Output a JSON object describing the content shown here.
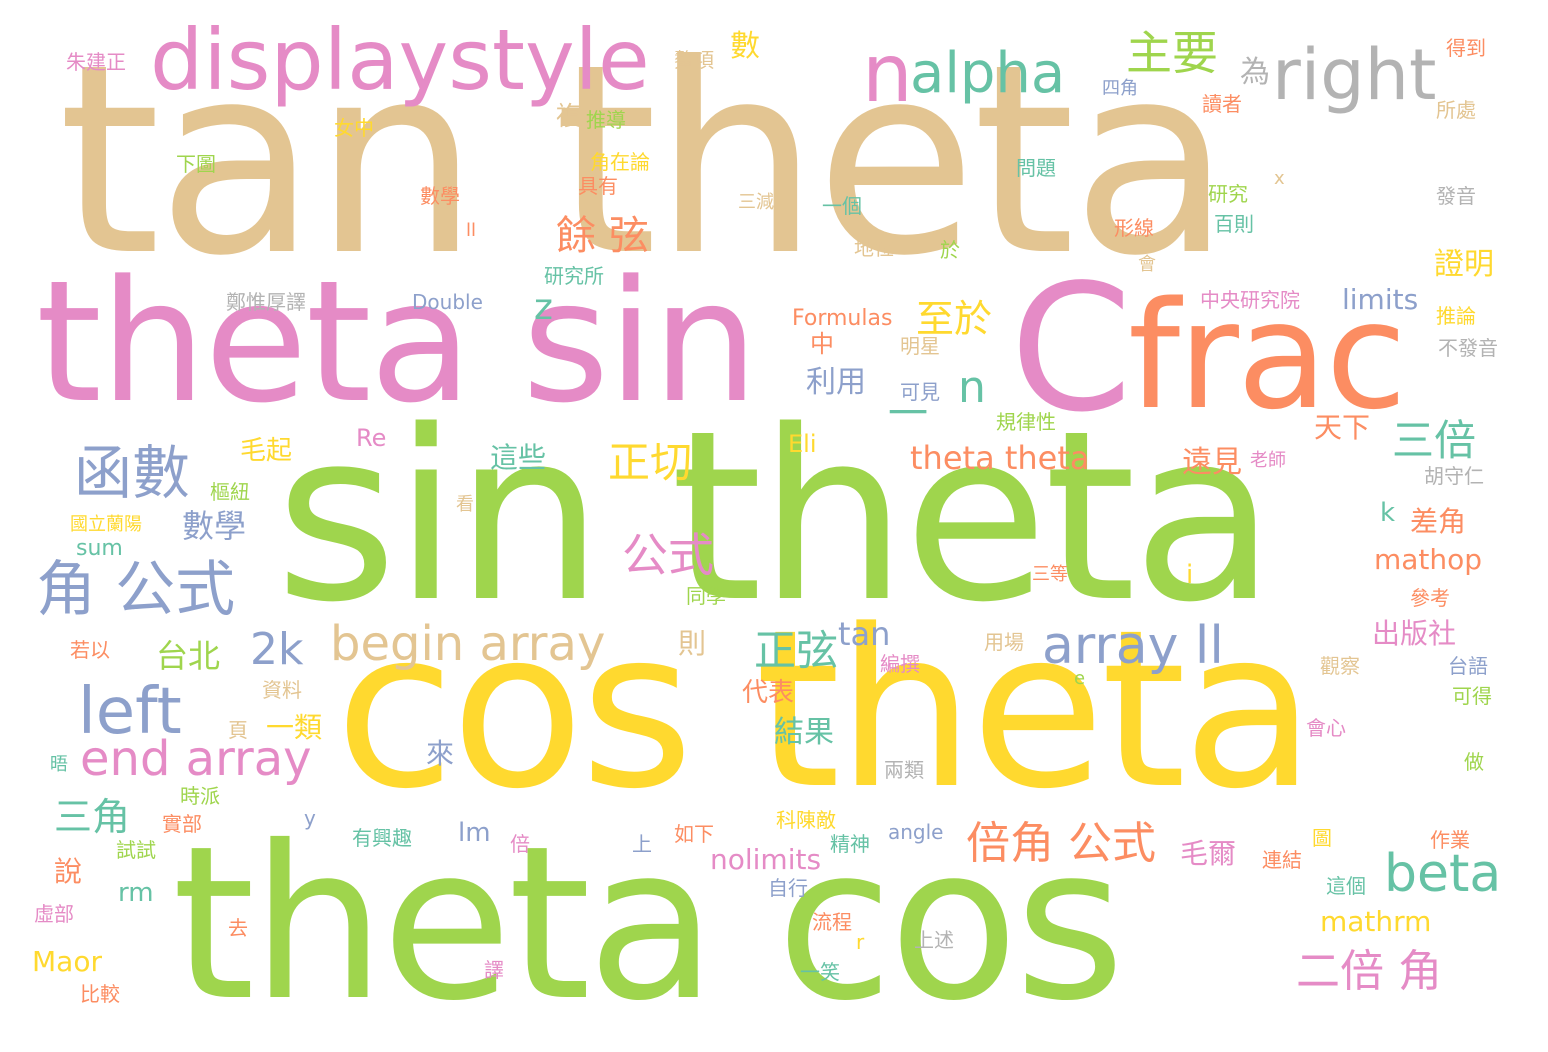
{
  "palette": {
    "tan": "#e3c592",
    "pink": "#e58bc6",
    "green": "#9fd54d",
    "yellow": "#ffd92f",
    "orange": "#fc8d62",
    "teal": "#66c2a5",
    "blue": "#8da0cb",
    "gray": "#b3b3b3"
  },
  "words": [
    {
      "text": "tan theta",
      "color": "tan"
    },
    {
      "text": "sin theta",
      "color": "green"
    },
    {
      "text": "cos theta",
      "color": "yellow"
    },
    {
      "text": "theta cos",
      "color": "green"
    },
    {
      "text": "theta sin",
      "color": "pink"
    },
    {
      "text": "C",
      "color": "pink"
    },
    {
      "text": "frac",
      "color": "orange"
    },
    {
      "text": "displaystyle",
      "color": "pink"
    },
    {
      "text": "n",
      "color": "pink"
    },
    {
      "text": "alpha",
      "color": "teal"
    },
    {
      "text": "right",
      "color": "gray"
    },
    {
      "text": "主要",
      "color": "green"
    },
    {
      "text": "為",
      "color": "gray"
    },
    {
      "text": "函數",
      "color": "blue"
    },
    {
      "text": "角 公式",
      "color": "blue"
    },
    {
      "text": "left",
      "color": "blue"
    },
    {
      "text": "end array",
      "color": "pink"
    },
    {
      "text": "begin array",
      "color": "tan"
    },
    {
      "text": "array ll",
      "color": "blue"
    },
    {
      "text": "beta",
      "color": "teal"
    },
    {
      "text": "倍角 公式",
      "color": "orange"
    },
    {
      "text": "二倍 角",
      "color": "pink"
    },
    {
      "text": "三倍",
      "color": "teal"
    },
    {
      "text": "正切",
      "color": "yellow"
    },
    {
      "text": "公式",
      "color": "pink"
    },
    {
      "text": "正弦",
      "color": "teal"
    },
    {
      "text": "theta theta",
      "color": "orange"
    },
    {
      "text": "餘 弦",
      "color": "orange"
    },
    {
      "text": "至於",
      "color": "yellow"
    },
    {
      "text": "n",
      "color": "teal"
    },
    {
      "text": "一",
      "color": "teal"
    },
    {
      "text": "2k",
      "color": "blue"
    },
    {
      "text": "三角",
      "color": "teal"
    },
    {
      "text": "數學",
      "color": "blue"
    },
    {
      "text": "台北",
      "color": "green"
    },
    {
      "text": "利用",
      "color": "blue"
    },
    {
      "text": "z",
      "color": "teal"
    },
    {
      "text": "tan",
      "color": "blue"
    },
    {
      "text": "數",
      "color": "yellow"
    },
    {
      "text": "證明",
      "color": "yellow"
    },
    {
      "text": "limits",
      "color": "blue"
    },
    {
      "text": "mathop",
      "color": "orange"
    },
    {
      "text": "出版社",
      "color": "pink"
    },
    {
      "text": "差角",
      "color": "orange"
    },
    {
      "text": "遠見",
      "color": "orange"
    },
    {
      "text": "天下",
      "color": "orange"
    },
    {
      "text": "nolimits",
      "color": "pink"
    },
    {
      "text": "mathrm",
      "color": "yellow"
    },
    {
      "text": "毛爾",
      "color": "pink"
    },
    {
      "text": "Maor",
      "color": "yellow"
    },
    {
      "text": "結果",
      "color": "teal"
    },
    {
      "text": "代表",
      "color": "orange"
    },
    {
      "text": "這些",
      "color": "teal"
    },
    {
      "text": "毛起",
      "color": "yellow"
    },
    {
      "text": "一類",
      "color": "yellow"
    },
    {
      "text": "Double",
      "color": "blue"
    },
    {
      "text": "Formulas",
      "color": "orange"
    },
    {
      "text": "中",
      "color": "orange"
    },
    {
      "text": "Re",
      "color": "pink"
    },
    {
      "text": "Eli",
      "color": "yellow"
    },
    {
      "text": "lm",
      "color": "blue"
    },
    {
      "text": "rm",
      "color": "teal"
    },
    {
      "text": "sum",
      "color": "teal"
    },
    {
      "text": "k",
      "color": "teal"
    },
    {
      "text": "i",
      "color": "yellow"
    },
    {
      "text": "來",
      "color": "blue"
    },
    {
      "text": "說",
      "color": "orange"
    },
    {
      "text": "則",
      "color": "tan"
    },
    {
      "text": "複",
      "color": "tan"
    },
    {
      "text": "中央研究院",
      "color": "pink"
    },
    {
      "text": "規律性",
      "color": "green"
    },
    {
      "text": "可見",
      "color": "blue"
    },
    {
      "text": "明星",
      "color": "tan"
    },
    {
      "text": "推論",
      "color": "yellow"
    },
    {
      "text": "不發音",
      "color": "gray"
    },
    {
      "text": "胡守仁",
      "color": "gray"
    },
    {
      "text": "老師",
      "color": "pink"
    },
    {
      "text": "三等",
      "color": "orange"
    },
    {
      "text": "參考",
      "color": "orange"
    },
    {
      "text": "台語",
      "color": "blue"
    },
    {
      "text": "可得",
      "color": "green"
    },
    {
      "text": "觀察",
      "color": "tan"
    },
    {
      "text": "會心",
      "color": "pink"
    },
    {
      "text": "做",
      "color": "green"
    },
    {
      "text": "作業",
      "color": "orange"
    },
    {
      "text": "圖",
      "color": "yellow"
    },
    {
      "text": "連結",
      "color": "orange"
    },
    {
      "text": "這個",
      "color": "teal"
    },
    {
      "text": "得到",
      "color": "orange"
    },
    {
      "text": "所處",
      "color": "tan"
    },
    {
      "text": "發音",
      "color": "gray"
    },
    {
      "text": "x",
      "color": "tan"
    },
    {
      "text": "研究",
      "color": "green"
    },
    {
      "text": "百則",
      "color": "teal"
    },
    {
      "text": "會",
      "color": "tan"
    },
    {
      "text": "形線",
      "color": "orange"
    },
    {
      "text": "讀者",
      "color": "orange"
    },
    {
      "text": "四角",
      "color": "blue"
    },
    {
      "text": "問題",
      "color": "teal"
    },
    {
      "text": "一個",
      "color": "teal"
    },
    {
      "text": "三減",
      "color": "tan"
    },
    {
      "text": "地位",
      "color": "tan"
    },
    {
      "text": "於",
      "color": "green"
    },
    {
      "text": "數學",
      "color": "orange"
    },
    {
      "text": "ll",
      "color": "orange"
    },
    {
      "text": "具有",
      "color": "orange"
    },
    {
      "text": "角在論",
      "color": "yellow"
    },
    {
      "text": "推導",
      "color": "green"
    },
    {
      "text": "女中",
      "color": "yellow"
    },
    {
      "text": "下圖",
      "color": "green"
    },
    {
      "text": "朱建正",
      "color": "pink"
    },
    {
      "text": "鰲項",
      "color": "tan"
    },
    {
      "text": "研究所",
      "color": "teal"
    },
    {
      "text": "鄭惟厚譯",
      "color": "gray"
    },
    {
      "text": "樞紐",
      "color": "green"
    },
    {
      "text": "國立蘭陽",
      "color": "yellow"
    },
    {
      "text": "看",
      "color": "tan"
    },
    {
      "text": "若以",
      "color": "orange"
    },
    {
      "text": "同學",
      "color": "green"
    },
    {
      "text": "用場",
      "color": "tan"
    },
    {
      "text": "編撰",
      "color": "pink"
    },
    {
      "text": "資料",
      "color": "tan"
    },
    {
      "text": "e",
      "color": "green"
    },
    {
      "text": "頁",
      "color": "tan"
    },
    {
      "text": "兩類",
      "color": "gray"
    },
    {
      "text": "時派",
      "color": "green"
    },
    {
      "text": "晤",
      "color": "teal"
    },
    {
      "text": "實部",
      "color": "orange"
    },
    {
      "text": "y",
      "color": "blue"
    },
    {
      "text": "試試",
      "color": "green"
    },
    {
      "text": "有興趣",
      "color": "teal"
    },
    {
      "text": "倍",
      "color": "pink"
    },
    {
      "text": "上",
      "color": "blue"
    },
    {
      "text": "如下",
      "color": "orange"
    },
    {
      "text": "科陳敵",
      "color": "yellow"
    },
    {
      "text": "精神",
      "color": "teal"
    },
    {
      "text": "angle",
      "color": "blue"
    },
    {
      "text": "自行",
      "color": "blue"
    },
    {
      "text": "虛部",
      "color": "pink"
    },
    {
      "text": "去",
      "color": "orange"
    },
    {
      "text": "流程",
      "color": "orange"
    },
    {
      "text": "r",
      "color": "yellow"
    },
    {
      "text": "上述",
      "color": "gray"
    },
    {
      "text": "譯",
      "color": "pink"
    },
    {
      "text": "一笑",
      "color": "teal"
    },
    {
      "text": "比較",
      "color": "orange"
    }
  ]
}
